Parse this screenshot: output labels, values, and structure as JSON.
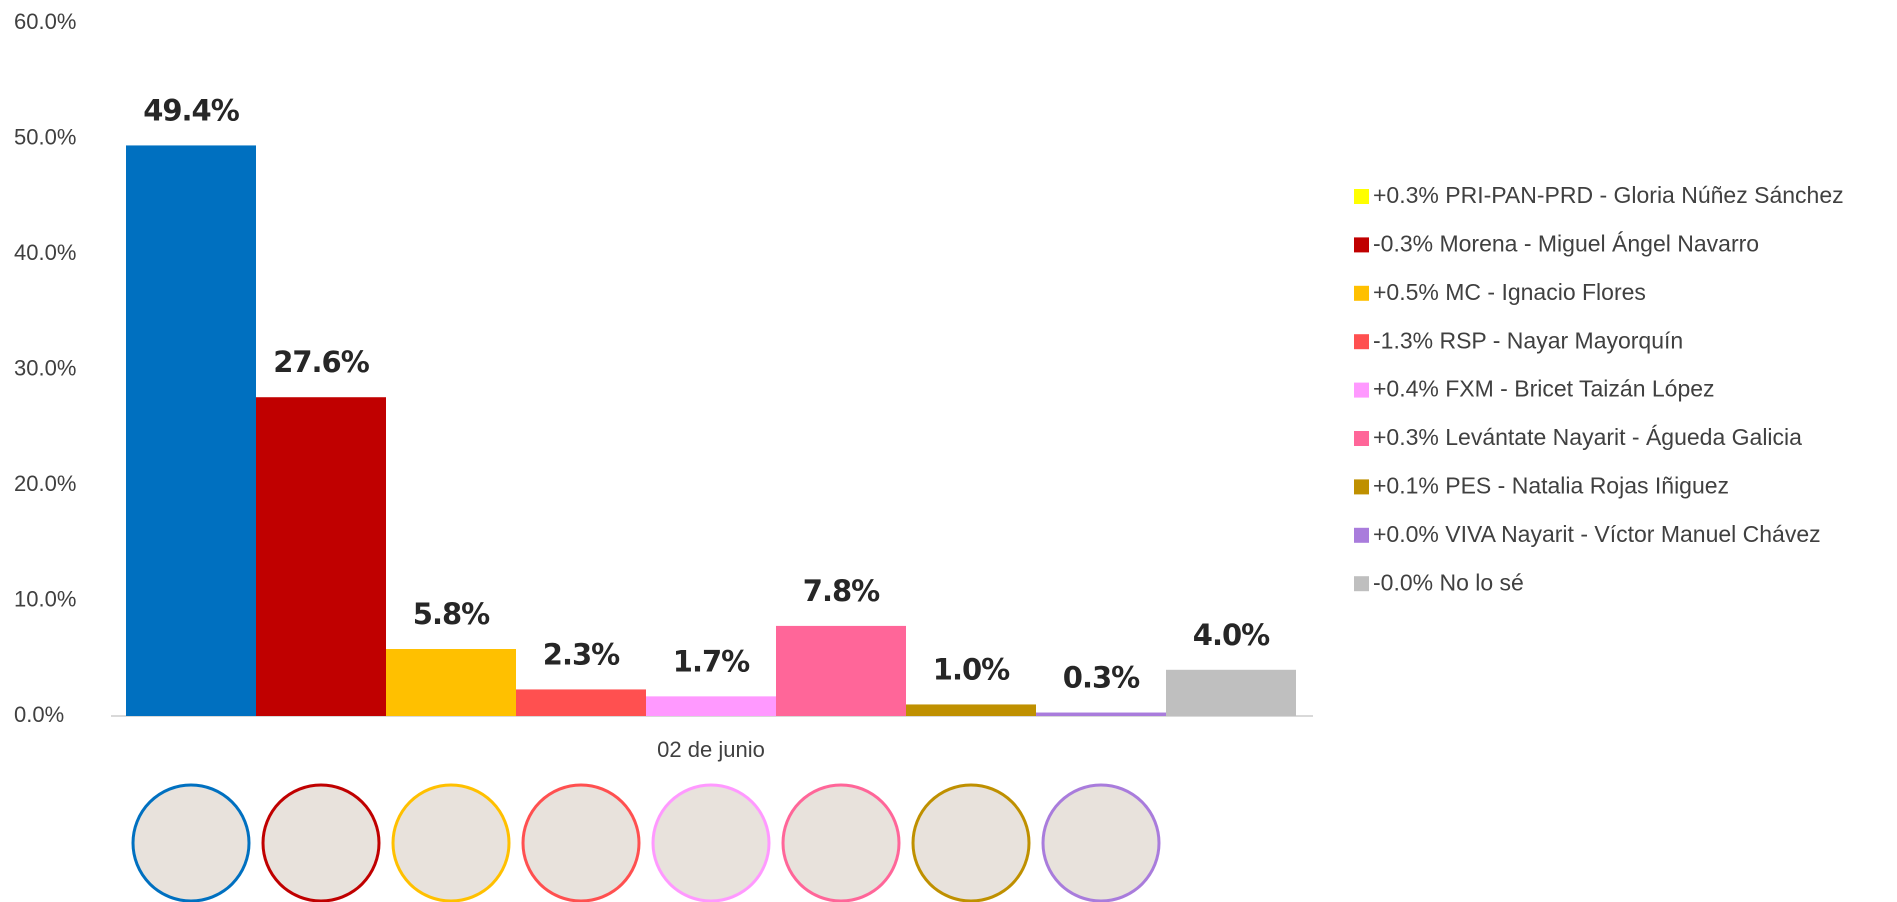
{
  "chart_data": {
    "type": "bar",
    "categories": [
      "02 de junio"
    ],
    "ylim": [
      0,
      60
    ],
    "yticks": [
      {
        "value": 0,
        "label": "0.0%"
      },
      {
        "value": 10,
        "label": "10.0%"
      },
      {
        "value": 20,
        "label": "20.0%"
      },
      {
        "value": 30,
        "label": "30.0%"
      },
      {
        "value": 40,
        "label": "40.0%"
      },
      {
        "value": 50,
        "label": "50.0%"
      },
      {
        "value": 60,
        "label": "60.0%"
      }
    ],
    "legend": "right",
    "series": [
      {
        "name": "+0.3% PRI-PAN-PRD - Gloria Núñez Sánchez",
        "color": "#0070c0",
        "legend_color": "#ffff00",
        "values": [
          49.4
        ],
        "value_labels": [
          "49.4%"
        ]
      },
      {
        "name": "-0.3% Morena - Miguel Ángel Navarro",
        "color": "#c00000",
        "legend_color": "#c00000",
        "values": [
          27.6
        ],
        "value_labels": [
          "27.6%"
        ]
      },
      {
        "name": "+0.5% MC - Ignacio Flores",
        "color": "#ffc000",
        "legend_color": "#ffc000",
        "values": [
          5.8
        ],
        "value_labels": [
          "5.8%"
        ]
      },
      {
        "name": "-1.3% RSP - Nayar Mayorquín",
        "color": "#ff5050",
        "legend_color": "#ff5050",
        "values": [
          2.3
        ],
        "value_labels": [
          "2.3%"
        ]
      },
      {
        "name": "+0.4% FXM - Bricet Taizán López",
        "color": "#ff99ff",
        "legend_color": "#ff99ff",
        "values": [
          1.7
        ],
        "value_labels": [
          "1.7%"
        ]
      },
      {
        "name": "+0.3% Levántate Nayarit - Águeda Galicia",
        "color": "#ff6699",
        "legend_color": "#ff6699",
        "values": [
          7.8
        ],
        "value_labels": [
          "7.8%"
        ]
      },
      {
        "name": "+0.1% PES - Natalia Rojas Iñiguez",
        "color": "#bf9000",
        "legend_color": "#bf9000",
        "values": [
          1.0
        ],
        "value_labels": [
          "1.0%"
        ]
      },
      {
        "name": "+0.0% VIVA Nayarit - Víctor Manuel Chávez",
        "color": "#a97cdc",
        "legend_color": "#a97cdc",
        "values": [
          0.3
        ],
        "value_labels": [
          "0.3%"
        ]
      },
      {
        "name": "-0.0% No lo sé",
        "color": "#bfbfbf",
        "legend_color": "#bfbfbf",
        "values": [
          4.0
        ],
        "value_labels": [
          "4.0%"
        ]
      }
    ]
  }
}
